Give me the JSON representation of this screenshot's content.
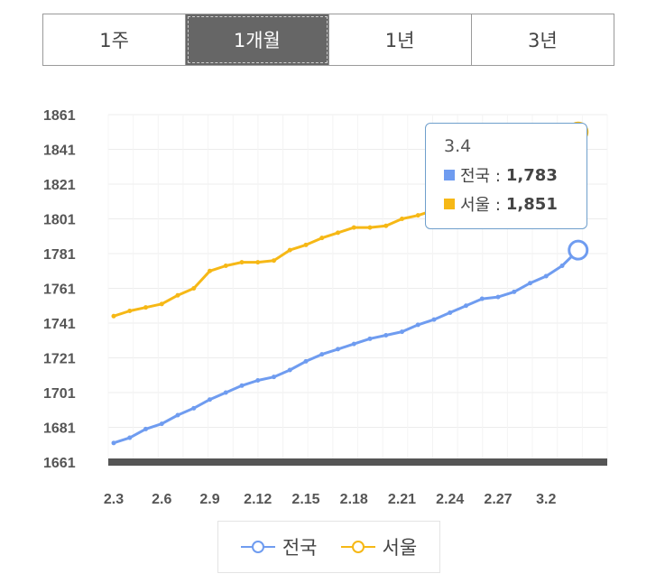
{
  "tabs": [
    {
      "label": "1주",
      "active": false
    },
    {
      "label": "1개월",
      "active": true
    },
    {
      "label": "1년",
      "active": false
    },
    {
      "label": "3년",
      "active": false
    }
  ],
  "colors": {
    "national": "#6f9cf0",
    "seoul": "#f6b816",
    "baseline": "#555555",
    "grid": "#ececec"
  },
  "tooltip": {
    "date": "3.4",
    "rows": [
      {
        "label": "전국 :",
        "value": "1,783"
      },
      {
        "label": "서울 :",
        "value": "1,851"
      }
    ]
  },
  "legend": [
    {
      "label": "전국",
      "icon": "line-circle-icon"
    },
    {
      "label": "서울",
      "icon": "line-circle-icon"
    }
  ],
  "chart_data": {
    "type": "line",
    "title": "",
    "xlabel": "",
    "ylabel": "",
    "ylim": [
      1661,
      1861
    ],
    "yticks": [
      1661,
      1681,
      1701,
      1721,
      1741,
      1761,
      1781,
      1801,
      1821,
      1841,
      1861
    ],
    "xtick_labels": [
      "2.3",
      "2.6",
      "2.9",
      "2.12",
      "2.15",
      "2.18",
      "2.21",
      "2.24",
      "2.27",
      "3.2"
    ],
    "x_dates": [
      "2.3",
      "2.4",
      "2.5",
      "2.6",
      "2.7",
      "2.8",
      "2.9",
      "2.10",
      "2.11",
      "2.12",
      "2.13",
      "2.14",
      "2.15",
      "2.16",
      "2.17",
      "2.18",
      "2.19",
      "2.20",
      "2.21",
      "2.22",
      "2.23",
      "2.24",
      "2.25",
      "2.26",
      "2.27",
      "2.28",
      "3.1",
      "3.2",
      "3.3",
      "3.4"
    ],
    "grid": true,
    "legend": "bottom",
    "series": [
      {
        "name": "전국",
        "values": [
          1672,
          1675,
          1680,
          1683,
          1688,
          1692,
          1697,
          1701,
          1705,
          1708,
          1710,
          1714,
          1719,
          1723,
          1726,
          1729,
          1732,
          1734,
          1736,
          1740,
          1743,
          1747,
          1751,
          1755,
          1756,
          1759,
          1764,
          1768,
          1774,
          1783
        ]
      },
      {
        "name": "서울",
        "values": [
          1745,
          1748,
          1750,
          1752,
          1757,
          1761,
          1771,
          1774,
          1776,
          1776,
          1777,
          1783,
          1786,
          1790,
          1793,
          1796,
          1796,
          1797,
          1801,
          1803,
          1806,
          1808,
          1810,
          1812,
          1815,
          1818,
          1821,
          1827,
          1836,
          1851
        ]
      }
    ]
  }
}
